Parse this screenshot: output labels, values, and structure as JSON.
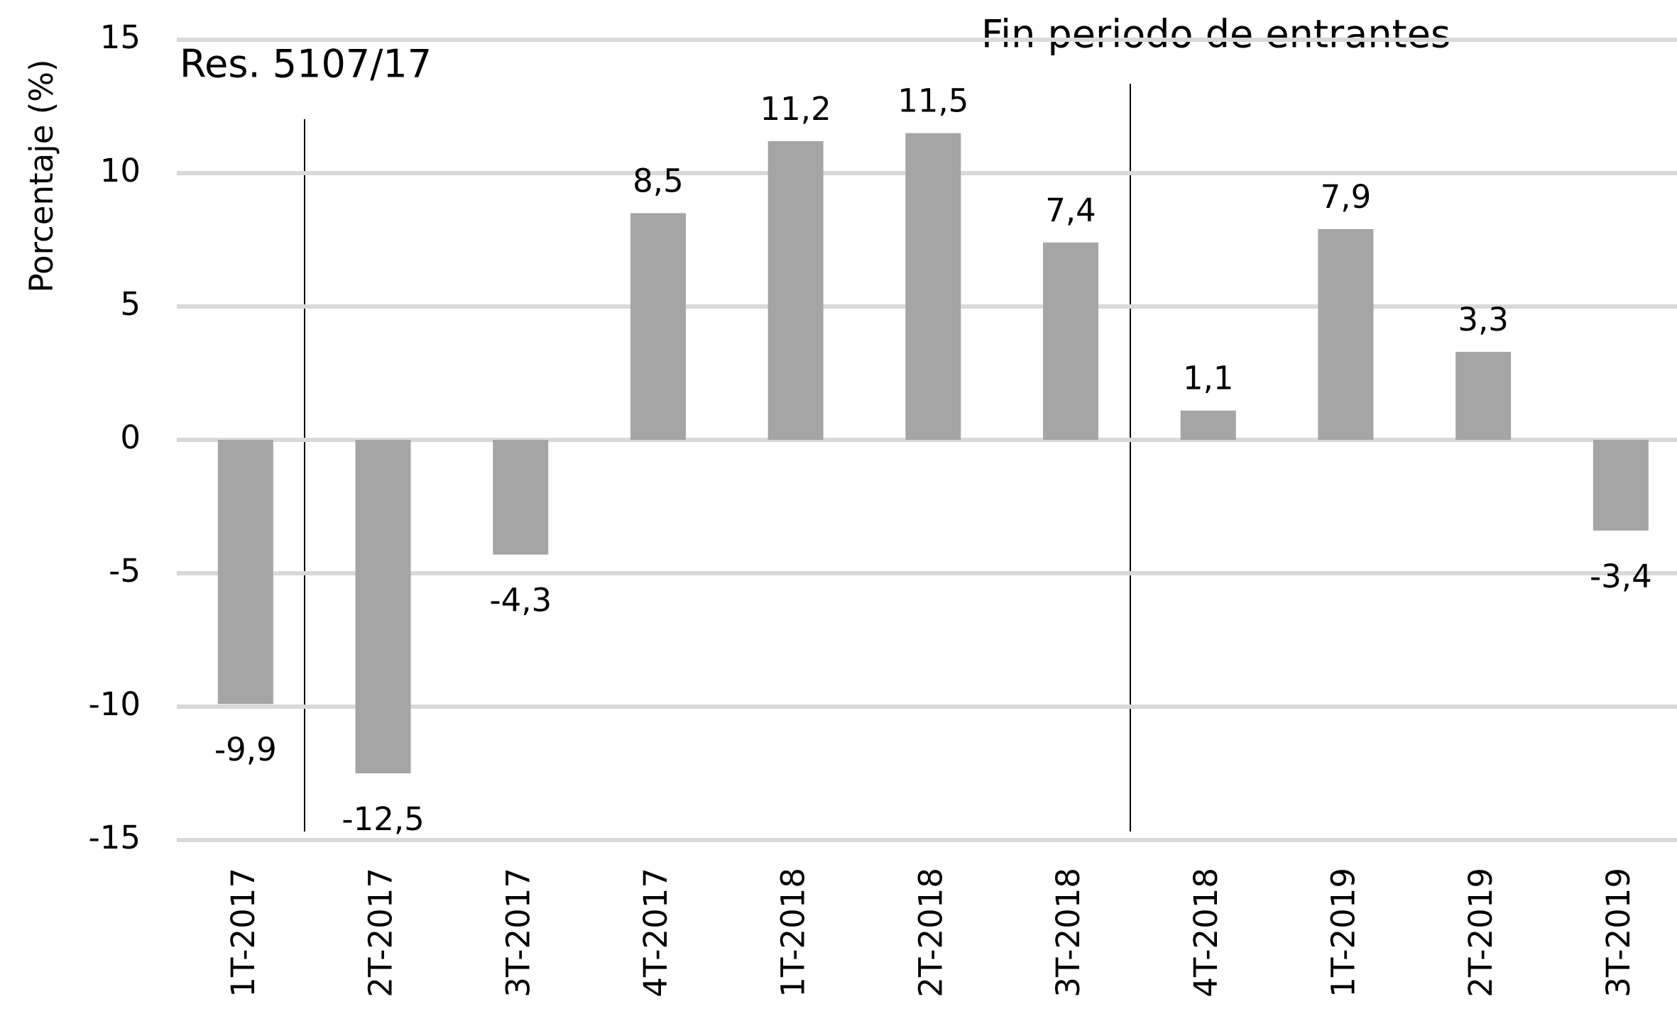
{
  "chart_data": {
    "type": "bar",
    "y_label": "Porcentaje (%)",
    "categories": [
      "1T-2017",
      "2T-2017",
      "3T-2017",
      "4T-2017",
      "1T-2018",
      "2T-2018",
      "3T-2018",
      "4T-2018",
      "1T-2019",
      "2T-2019",
      "3T-2019"
    ],
    "values": [
      -9.9,
      -12.5,
      -4.3,
      8.5,
      11.2,
      11.5,
      7.4,
      1.1,
      7.9,
      3.3,
      -3.4
    ],
    "value_labels": [
      "-9,9",
      "-12,5",
      "-4,3",
      "8,5",
      "11,2",
      "11,5",
      "7,4",
      "1,1",
      "7,9",
      "3,3",
      "-3,4"
    ],
    "color": "#a5a5a5",
    "ylim": [
      -15,
      15
    ],
    "yticks": [
      -15,
      -10,
      -5,
      0,
      5,
      10,
      15
    ],
    "grid": true,
    "annotations": [
      "Res. 5107/17",
      "Fin periodo de entrantes"
    ]
  }
}
